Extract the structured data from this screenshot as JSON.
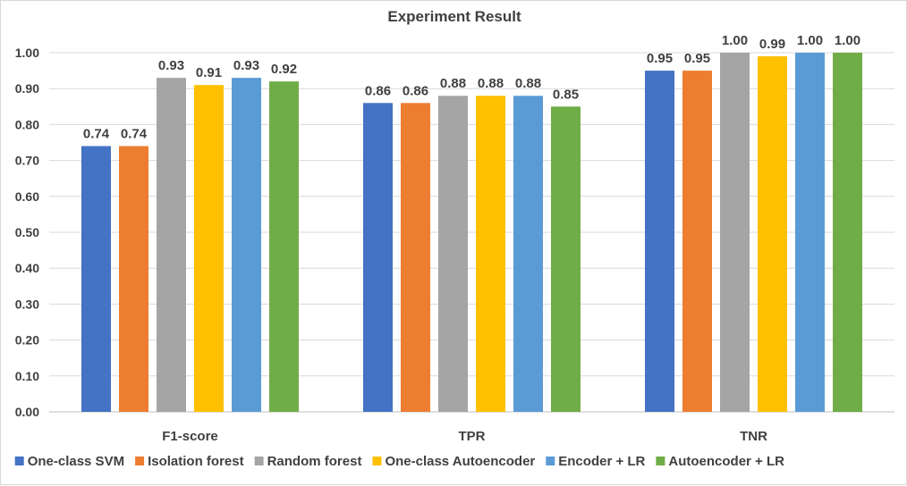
{
  "chart_data": {
    "type": "bar",
    "title": "Experiment Result",
    "xlabel": "",
    "ylabel": "",
    "ylim": [
      0,
      1.0
    ],
    "yticks": [
      "0.00",
      "0.10",
      "0.20",
      "0.30",
      "0.40",
      "0.50",
      "0.60",
      "0.70",
      "0.80",
      "0.90",
      "1.00"
    ],
    "categories": [
      "F1-score",
      "TPR",
      "TNR"
    ],
    "series": [
      {
        "name": "One-class SVM",
        "color": "#4472c4",
        "values": [
          0.74,
          0.86,
          0.95
        ],
        "labels": [
          "0.74",
          "0.86",
          "0.95"
        ]
      },
      {
        "name": "Isolation forest",
        "color": "#ed7d31",
        "values": [
          0.74,
          0.86,
          0.95
        ],
        "labels": [
          "0.74",
          "0.86",
          "0.95"
        ]
      },
      {
        "name": "Random forest",
        "color": "#a5a5a5",
        "values": [
          0.93,
          0.88,
          1.0
        ],
        "labels": [
          "0.93",
          "0.88",
          "1.00"
        ]
      },
      {
        "name": "One-class Autoencoder",
        "color": "#ffc000",
        "values": [
          0.91,
          0.88,
          0.99
        ],
        "labels": [
          "0.91",
          "0.88",
          "0.99"
        ]
      },
      {
        "name": "Encoder + LR",
        "color": "#5b9bd5",
        "values": [
          0.93,
          0.88,
          1.0
        ],
        "labels": [
          "0.93",
          "0.88",
          "1.00"
        ]
      },
      {
        "name": "Autoencoder + LR",
        "color": "#70ad47",
        "values": [
          0.92,
          0.85,
          1.0
        ],
        "labels": [
          "0.92",
          "0.85",
          "1.00"
        ]
      }
    ],
    "grid": true,
    "legend": "bottom"
  }
}
